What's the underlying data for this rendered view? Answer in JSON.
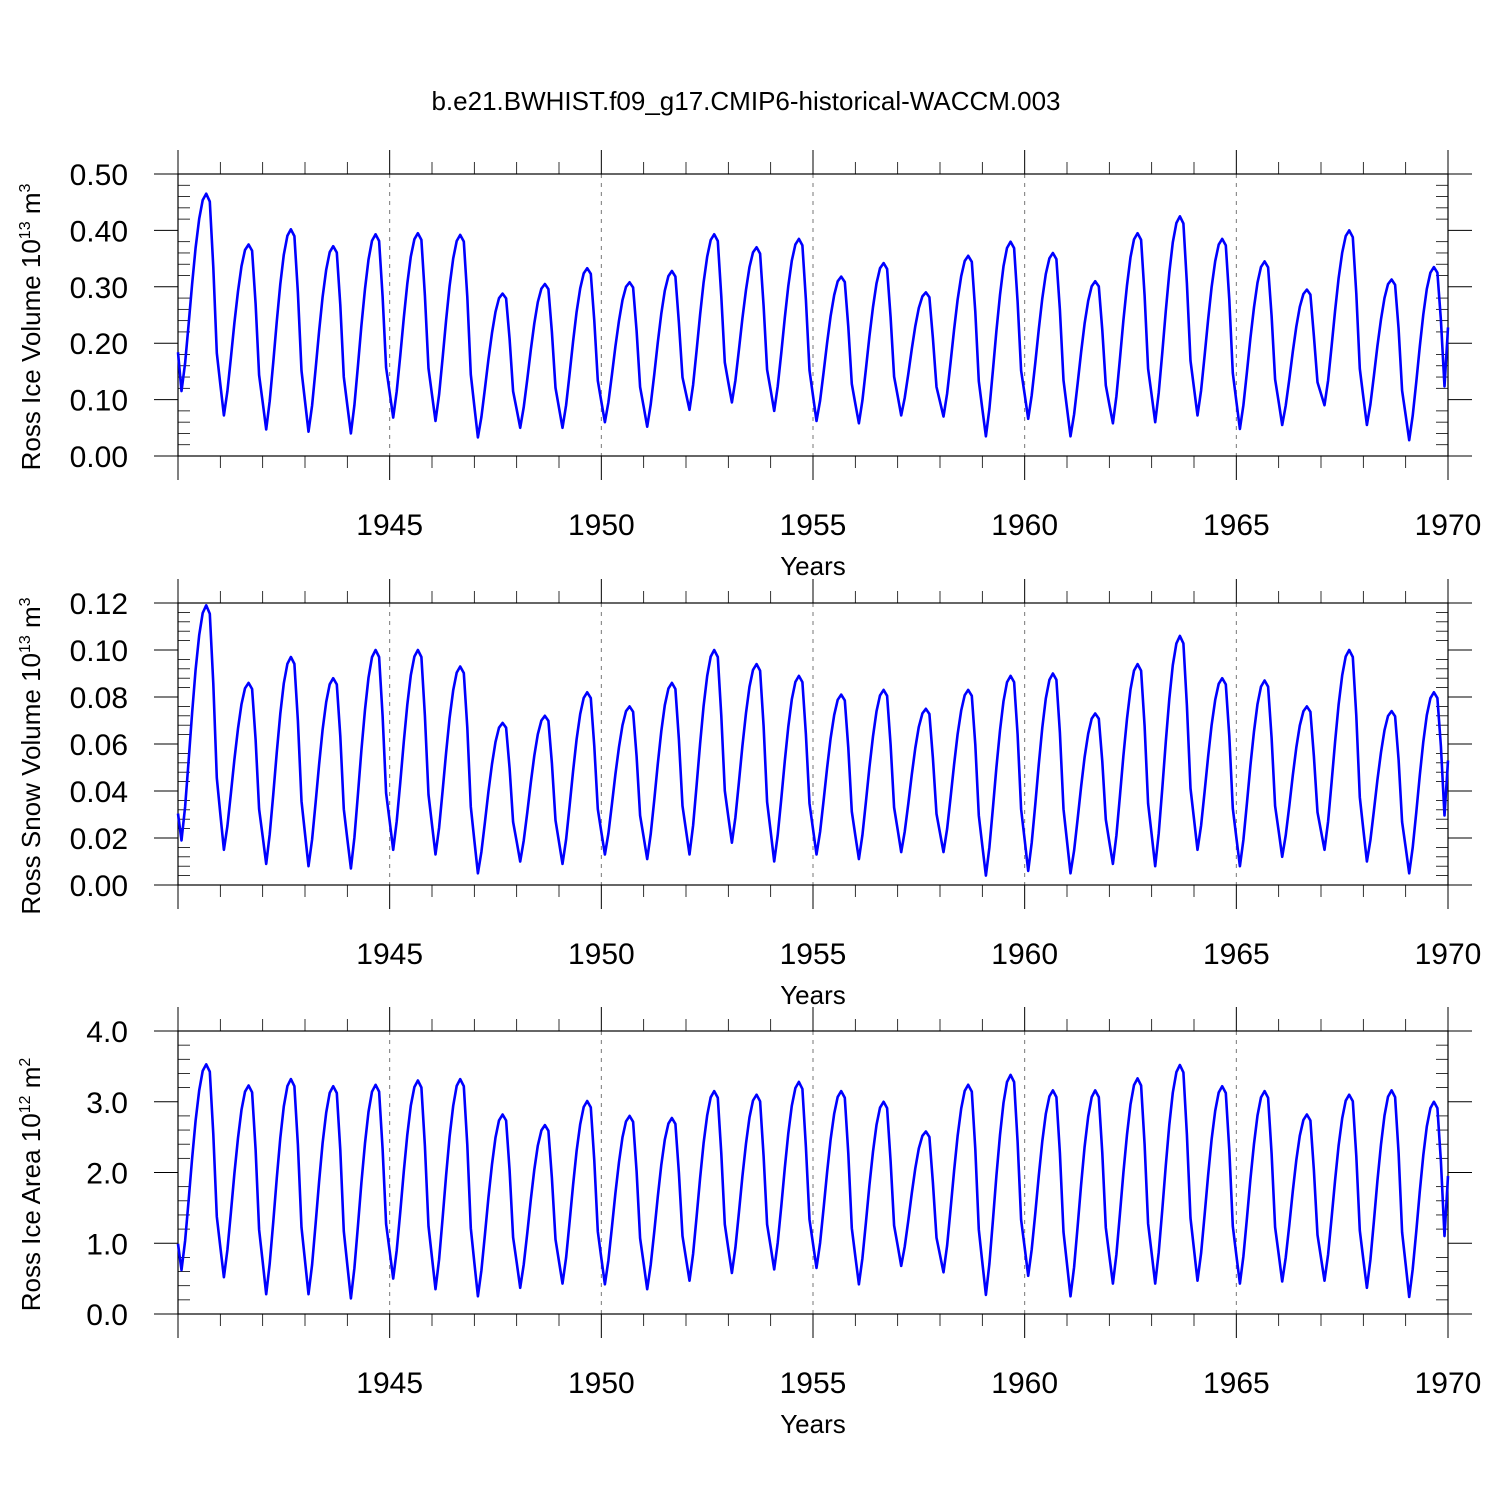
{
  "title": "b.e21.BWHIST.f09_g17.CMIP6-historical-WACCM.003",
  "line_color": "#0000ff",
  "chart_data": [
    {
      "type": "line",
      "title": "b.e21.BWHIST.f09_g17.CMIP6-historical-WACCM.003",
      "xlabel": "Years",
      "ylabel": "Ross Ice Volume 10",
      "ylabel_sup": "13",
      "ylabel_unit": " m",
      "ylabel_unit_sup": "3",
      "xlim": [
        1940.0,
        1970.0
      ],
      "ylim": [
        0.0,
        0.5
      ],
      "xticks": [
        "1945",
        "1950",
        "1955",
        "1960",
        "1965",
        "1970"
      ],
      "yticks": [
        "0.00",
        "0.10",
        "0.20",
        "0.30",
        "0.40",
        "0.50"
      ],
      "grid": "dashed vertical at 5-year ticks",
      "series": [
        {
          "minima": [
            0.115,
            0.072,
            0.047,
            0.043,
            0.04,
            0.068,
            0.062,
            0.033,
            0.05,
            0.05,
            0.06,
            0.052,
            0.082,
            0.095,
            0.08,
            0.062,
            0.058,
            0.072,
            0.07,
            0.035,
            0.066,
            0.035,
            0.058,
            0.06,
            0.072,
            0.048,
            0.055,
            0.09,
            0.055,
            0.028
          ],
          "maxima": [
            0.465,
            0.375,
            0.402,
            0.372,
            0.393,
            0.395,
            0.392,
            0.288,
            0.305,
            0.333,
            0.308,
            0.328,
            0.393,
            0.37,
            0.385,
            0.318,
            0.342,
            0.29,
            0.355,
            0.38,
            0.36,
            0.31,
            0.395,
            0.425,
            0.385,
            0.345,
            0.295,
            0.4,
            0.313,
            0.335
          ],
          "end": 0.228
        }
      ]
    },
    {
      "type": "line",
      "xlabel": "Years",
      "ylabel": "Ross Snow Volume 10",
      "ylabel_sup": "13",
      "ylabel_unit": " m",
      "ylabel_unit_sup": "3",
      "xlim": [
        1940.0,
        1970.0
      ],
      "ylim": [
        0.0,
        0.12
      ],
      "xticks": [
        "1945",
        "1950",
        "1955",
        "1960",
        "1965",
        "1970"
      ],
      "yticks": [
        "0.00",
        "0.02",
        "0.04",
        "0.06",
        "0.08",
        "0.10",
        "0.12"
      ],
      "grid": "dashed vertical at 5-year ticks",
      "series": [
        {
          "minima": [
            0.019,
            0.015,
            0.009,
            0.008,
            0.007,
            0.015,
            0.013,
            0.005,
            0.01,
            0.009,
            0.013,
            0.011,
            0.013,
            0.018,
            0.01,
            0.013,
            0.011,
            0.014,
            0.014,
            0.004,
            0.006,
            0.005,
            0.009,
            0.008,
            0.015,
            0.008,
            0.012,
            0.015,
            0.01,
            0.005
          ],
          "maxima": [
            0.119,
            0.086,
            0.097,
            0.088,
            0.1,
            0.1,
            0.093,
            0.069,
            0.072,
            0.082,
            0.076,
            0.086,
            0.1,
            0.094,
            0.089,
            0.081,
            0.083,
            0.075,
            0.083,
            0.089,
            0.09,
            0.073,
            0.094,
            0.106,
            0.088,
            0.087,
            0.076,
            0.1,
            0.074,
            0.082
          ],
          "end": 0.053
        }
      ]
    },
    {
      "type": "line",
      "xlabel": "Years",
      "ylabel": "Ross Ice Area 10",
      "ylabel_sup": "12",
      "ylabel_unit": " m",
      "ylabel_unit_sup": "2",
      "xlim": [
        1940.0,
        1970.0
      ],
      "ylim": [
        0.0,
        4.0
      ],
      "xticks": [
        "1945",
        "1950",
        "1955",
        "1960",
        "1965",
        "1970"
      ],
      "yticks": [
        "0.0",
        "1.0",
        "2.0",
        "3.0",
        "4.0"
      ],
      "grid": "dashed vertical at 5-year ticks",
      "series": [
        {
          "minima": [
            0.62,
            0.52,
            0.28,
            0.28,
            0.22,
            0.5,
            0.35,
            0.25,
            0.37,
            0.43,
            0.42,
            0.35,
            0.47,
            0.58,
            0.63,
            0.65,
            0.42,
            0.68,
            0.59,
            0.27,
            0.54,
            0.25,
            0.43,
            0.43,
            0.47,
            0.43,
            0.46,
            0.47,
            0.37,
            0.24
          ],
          "maxima": [
            3.53,
            3.23,
            3.32,
            3.22,
            3.24,
            3.3,
            3.32,
            2.82,
            2.67,
            3.01,
            2.8,
            2.77,
            3.15,
            3.1,
            3.28,
            3.15,
            3.0,
            2.58,
            3.24,
            3.38,
            3.16,
            3.16,
            3.33,
            3.52,
            3.22,
            3.15,
            2.82,
            3.1,
            3.16,
            3.0
          ],
          "end": 1.95
        }
      ]
    }
  ]
}
